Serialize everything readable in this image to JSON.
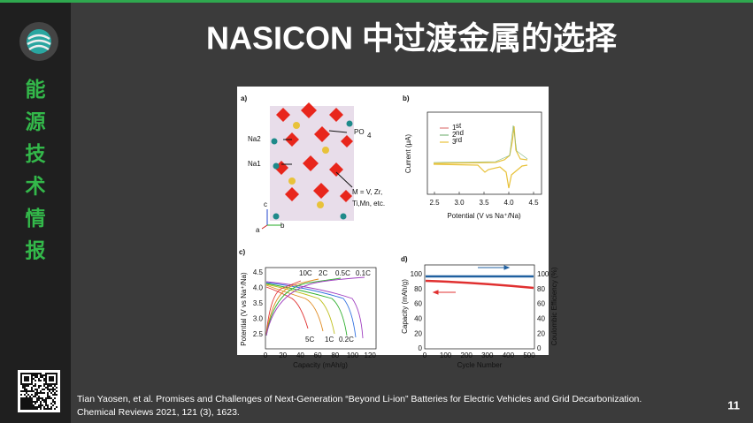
{
  "sidebar": {
    "brand": [
      "能",
      "源",
      "技",
      "术",
      "情",
      "报"
    ]
  },
  "header": {
    "title": "NASICON 中过渡金属的选择"
  },
  "figure": {
    "a": {
      "label": "a)",
      "na2": "Na2",
      "na1": "Na1",
      "po": "PO",
      "po_sub": "4",
      "m_line1": "M = V, Zr,",
      "m_line2": "Ti,Mn, etc.",
      "axes": [
        "c",
        "b",
        "a"
      ]
    },
    "b": {
      "label": "b)",
      "ylabel": "Current (μA)",
      "xlabel": "Potential (V vs Na⁺/Na)",
      "xticks": [
        "2.5",
        "3.0",
        "3.5",
        "4.0",
        "4.5"
      ],
      "legend": [
        {
          "num": "1",
          "sup": "st",
          "color": "#e07b7b"
        },
        {
          "num": "2",
          "sup": "nd",
          "color": "#7fb77f"
        },
        {
          "num": "3",
          "sup": "rd",
          "color": "#e8c23a"
        }
      ]
    },
    "c": {
      "label": "c)",
      "ylabel": "Potential (V vs Na⁺/Na)",
      "xlabel": "Capacity (mAh/g)",
      "yticks": [
        "2.5",
        "3.0",
        "3.5",
        "4.0",
        "4.5"
      ],
      "xticks": [
        "0",
        "20",
        "40",
        "60",
        "80",
        "100",
        "120"
      ],
      "rates_top": [
        "10C",
        "2C",
        "0.5C",
        "0.1C"
      ],
      "rates_bottom": [
        "5C",
        "1C",
        "0.2C"
      ]
    },
    "d": {
      "label": "d)",
      "ylabel": "Capacity (mAh/g)",
      "y2label": "Coulombic Efficiency (%)",
      "xlabel": "Cycle Number",
      "xticks": [
        "0",
        "100",
        "200",
        "300",
        "400",
        "500"
      ],
      "yticks": [
        "0",
        "20",
        "40",
        "60",
        "80",
        "100"
      ],
      "y2ticks": [
        "0",
        "20",
        "40",
        "60",
        "80",
        "100"
      ]
    }
  },
  "caption": {
    "lines": [
      "Tian Yaosen, et al. Promises and Challenges of Next-Generation “Beyond Li-ion” Batteries for Electric Vehicles and Grid Decarbonization.",
      "Chemical Reviews 2021, 121 (3), 1623."
    ]
  },
  "page_number": "11"
}
